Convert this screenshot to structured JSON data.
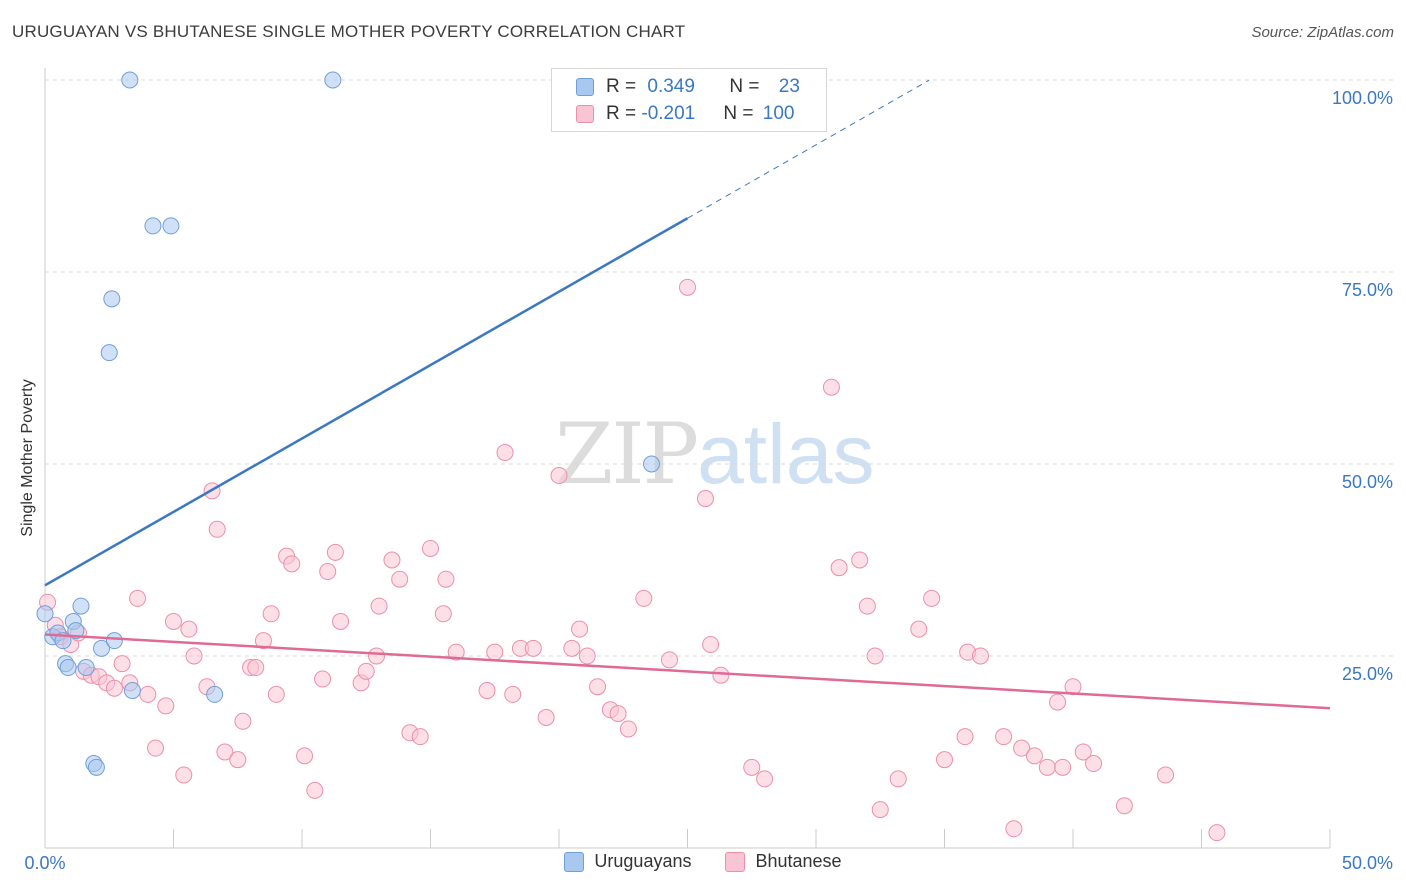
{
  "header": {
    "title": "URUGUAYAN VS BHUTANESE SINGLE MOTHER POVERTY CORRELATION CHART",
    "source": "Source: ZipAtlas.com"
  },
  "watermark": {
    "zip": "ZIP",
    "atlas": "atlas"
  },
  "legend_top": {
    "rows": [
      {
        "r_label": "R = ",
        "r_value": "0.349",
        "n_label": "N = ",
        "n_value": "23",
        "color": "#a9c8f0",
        "border": "#6f9fd8"
      },
      {
        "r_label": "R = ",
        "r_value": "-0.201",
        "n_label": "N = ",
        "n_value": "100",
        "color": "#f9c4d4",
        "border": "#ec8fab"
      }
    ]
  },
  "legend_bottom": [
    {
      "label": "Uruguayans",
      "color": "#a9c8f0",
      "border": "#6f9fd8"
    },
    {
      "label": "Bhutanese",
      "color": "#f9c4d4",
      "border": "#ec8fab"
    }
  ],
  "chart_data": {
    "type": "scatter",
    "title": "URUGUAYAN VS BHUTANESE SINGLE MOTHER POVERTY CORRELATION CHART",
    "xlabel": "",
    "ylabel": "Single Mother Poverty",
    "xlim": [
      0,
      50
    ],
    "ylim": [
      0,
      100
    ],
    "x_tick_labels": [
      "0.0%",
      "50.0%"
    ],
    "y_ticks": [
      25,
      50,
      75,
      100
    ],
    "y_tick_labels": [
      "25.0%",
      "50.0%",
      "75.0%",
      "100.0%"
    ],
    "grid": "horizontal dashed",
    "legend_position": "top-center",
    "series": [
      {
        "name": "Uruguayans",
        "color": "#6f9fd8",
        "fill": "#a9c8f0",
        "x": [
          0.0,
          0.3,
          0.5,
          0.7,
          0.8,
          0.9,
          1.1,
          1.2,
          1.4,
          1.6,
          1.9,
          2.0,
          2.2,
          2.5,
          2.6,
          2.7,
          3.3,
          3.4,
          4.2,
          4.9,
          6.6,
          11.2,
          23.6
        ],
        "y": [
          30.5,
          27.5,
          28.0,
          27.0,
          24.0,
          23.5,
          29.5,
          28.3,
          31.5,
          23.5,
          11.0,
          10.5,
          26.0,
          64.5,
          71.5,
          27.0,
          100.0,
          20.5,
          81.0,
          81.0,
          20.0,
          100.0,
          50.0
        ]
      },
      {
        "name": "Bhutanese",
        "color": "#ec8fab",
        "fill": "#f9c4d4",
        "x": [
          0.1,
          0.4,
          0.6,
          1.0,
          1.3,
          1.5,
          1.8,
          2.1,
          2.4,
          2.7,
          3.0,
          3.3,
          3.6,
          4.0,
          4.3,
          4.7,
          5.0,
          5.4,
          5.6,
          5.8,
          6.3,
          6.5,
          6.7,
          7.0,
          7.5,
          7.7,
          8.0,
          8.2,
          8.5,
          8.8,
          9.0,
          9.4,
          9.6,
          10.1,
          10.5,
          10.8,
          11.0,
          11.3,
          11.5,
          12.3,
          12.5,
          12.9,
          13.0,
          13.5,
          13.8,
          14.2,
          14.6,
          15.0,
          15.5,
          15.6,
          16.0,
          17.2,
          17.5,
          17.9,
          18.2,
          18.5,
          19.0,
          19.5,
          20.0,
          20.5,
          20.8,
          21.1,
          21.5,
          22.0,
          22.3,
          22.7,
          23.3,
          24.3,
          25.0,
          25.7,
          25.9,
          26.3,
          27.5,
          28.0,
          30.6,
          30.9,
          31.7,
          32.0,
          32.3,
          32.5,
          33.2,
          34.0,
          34.5,
          35.0,
          35.8,
          35.9,
          36.4,
          37.3,
          37.7,
          38.0,
          38.5,
          39.0,
          39.4,
          39.6,
          40.0,
          40.4,
          40.8,
          42.0,
          43.6,
          45.6
        ],
        "y": [
          32.0,
          29.0,
          27.5,
          26.5,
          28.0,
          23.0,
          22.5,
          22.3,
          21.5,
          20.8,
          24.0,
          21.5,
          32.5,
          20.0,
          13.0,
          18.5,
          29.5,
          9.5,
          28.5,
          25.0,
          21.0,
          46.5,
          41.5,
          12.5,
          11.5,
          16.5,
          23.5,
          23.5,
          27.0,
          30.5,
          20.0,
          38.0,
          37.0,
          12.0,
          7.5,
          22.0,
          36.0,
          38.5,
          29.5,
          21.5,
          23.0,
          25.0,
          31.5,
          37.5,
          35.0,
          15.0,
          14.5,
          39.0,
          30.5,
          35.0,
          25.5,
          20.5,
          25.5,
          51.5,
          20.0,
          26.0,
          26.0,
          17.0,
          48.5,
          26.0,
          28.5,
          25.0,
          21.0,
          18.0,
          17.5,
          15.5,
          32.5,
          24.5,
          73.0,
          45.5,
          26.5,
          22.5,
          10.5,
          9.0,
          60.0,
          36.5,
          37.5,
          31.5,
          25.0,
          5.0,
          9.0,
          28.5,
          32.5,
          11.5,
          14.5,
          25.5,
          25.0,
          14.5,
          2.5,
          13.0,
          12.0,
          10.5,
          19.0,
          10.5,
          21.0,
          12.5,
          11.0,
          5.5,
          9.5,
          2.0
        ]
      }
    ],
    "trend_lines": [
      {
        "series": "Uruguayans",
        "color": "#3a78c4",
        "x0": 0,
        "y0": 34.2,
        "x1": 25.0,
        "y1": 82.0,
        "dashed_to_x": 34.4
      },
      {
        "series": "Bhutanese",
        "color": "#e06a96",
        "x0": 0,
        "y0": 27.8,
        "x1": 50.0,
        "y1": 18.2
      }
    ]
  }
}
